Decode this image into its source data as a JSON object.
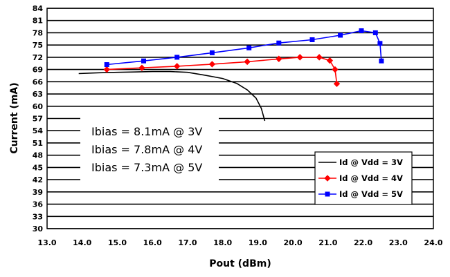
{
  "chart_data": {
    "type": "line",
    "xlabel": "Pout (dBm)",
    "ylabel": "Current (mA)",
    "xlim": [
      13.0,
      24.0
    ],
    "ylim": [
      30,
      84
    ],
    "x_ticks": [
      "13.0",
      "14.0",
      "15.0",
      "16.0",
      "17.0",
      "18.0",
      "19.0",
      "20.0",
      "21.0",
      "22.0",
      "23.0",
      "24.0"
    ],
    "y_ticks": [
      "30",
      "33",
      "36",
      "39",
      "42",
      "45",
      "48",
      "51",
      "54",
      "57",
      "60",
      "63",
      "66",
      "69",
      "72",
      "75",
      "78",
      "81",
      "84"
    ],
    "grid": "horizontal",
    "legend_position": "lower-right",
    "annotations": [
      "Ibias = 8.1mA @ 3V",
      "Ibias = 7.8mA @ 4V",
      "Ibias = 7.3mA @ 5V"
    ],
    "series": [
      {
        "name": "Id @ Vdd = 3V",
        "color": "#000000",
        "marker": "none",
        "points": [
          [
            13.9,
            68.0
          ],
          [
            14.5,
            68.2
          ],
          [
            15.0,
            68.3
          ],
          [
            15.5,
            68.4
          ],
          [
            16.0,
            68.5
          ],
          [
            16.5,
            68.5
          ],
          [
            17.0,
            68.3
          ],
          [
            17.5,
            67.6
          ],
          [
            18.0,
            66.8
          ],
          [
            18.4,
            65.6
          ],
          [
            18.7,
            64.0
          ],
          [
            18.95,
            62.0
          ],
          [
            19.1,
            59.5
          ],
          [
            19.2,
            56.4
          ]
        ]
      },
      {
        "name": "Id @ Vdd = 4V",
        "color": "#ff0000",
        "marker": "diamond",
        "points": [
          [
            14.7,
            69.0
          ],
          [
            15.7,
            69.4
          ],
          [
            16.7,
            69.8
          ],
          [
            17.7,
            70.3
          ],
          [
            18.7,
            70.9
          ],
          [
            19.6,
            71.6
          ],
          [
            20.2,
            72.0
          ],
          [
            20.75,
            72.0
          ],
          [
            21.05,
            71.2
          ],
          [
            21.2,
            69.0
          ],
          [
            21.25,
            65.5
          ]
        ]
      },
      {
        "name": "Id @ Vdd = 5V",
        "color": "#0000ff",
        "marker": "square",
        "points": [
          [
            14.7,
            70.2
          ],
          [
            15.75,
            71.1
          ],
          [
            16.7,
            72.0
          ],
          [
            17.7,
            73.1
          ],
          [
            18.75,
            74.3
          ],
          [
            19.6,
            75.5
          ],
          [
            20.55,
            76.3
          ],
          [
            21.35,
            77.4
          ],
          [
            21.95,
            78.5
          ],
          [
            22.35,
            78.0
          ],
          [
            22.48,
            75.4
          ],
          [
            22.52,
            71.1
          ]
        ]
      }
    ]
  }
}
